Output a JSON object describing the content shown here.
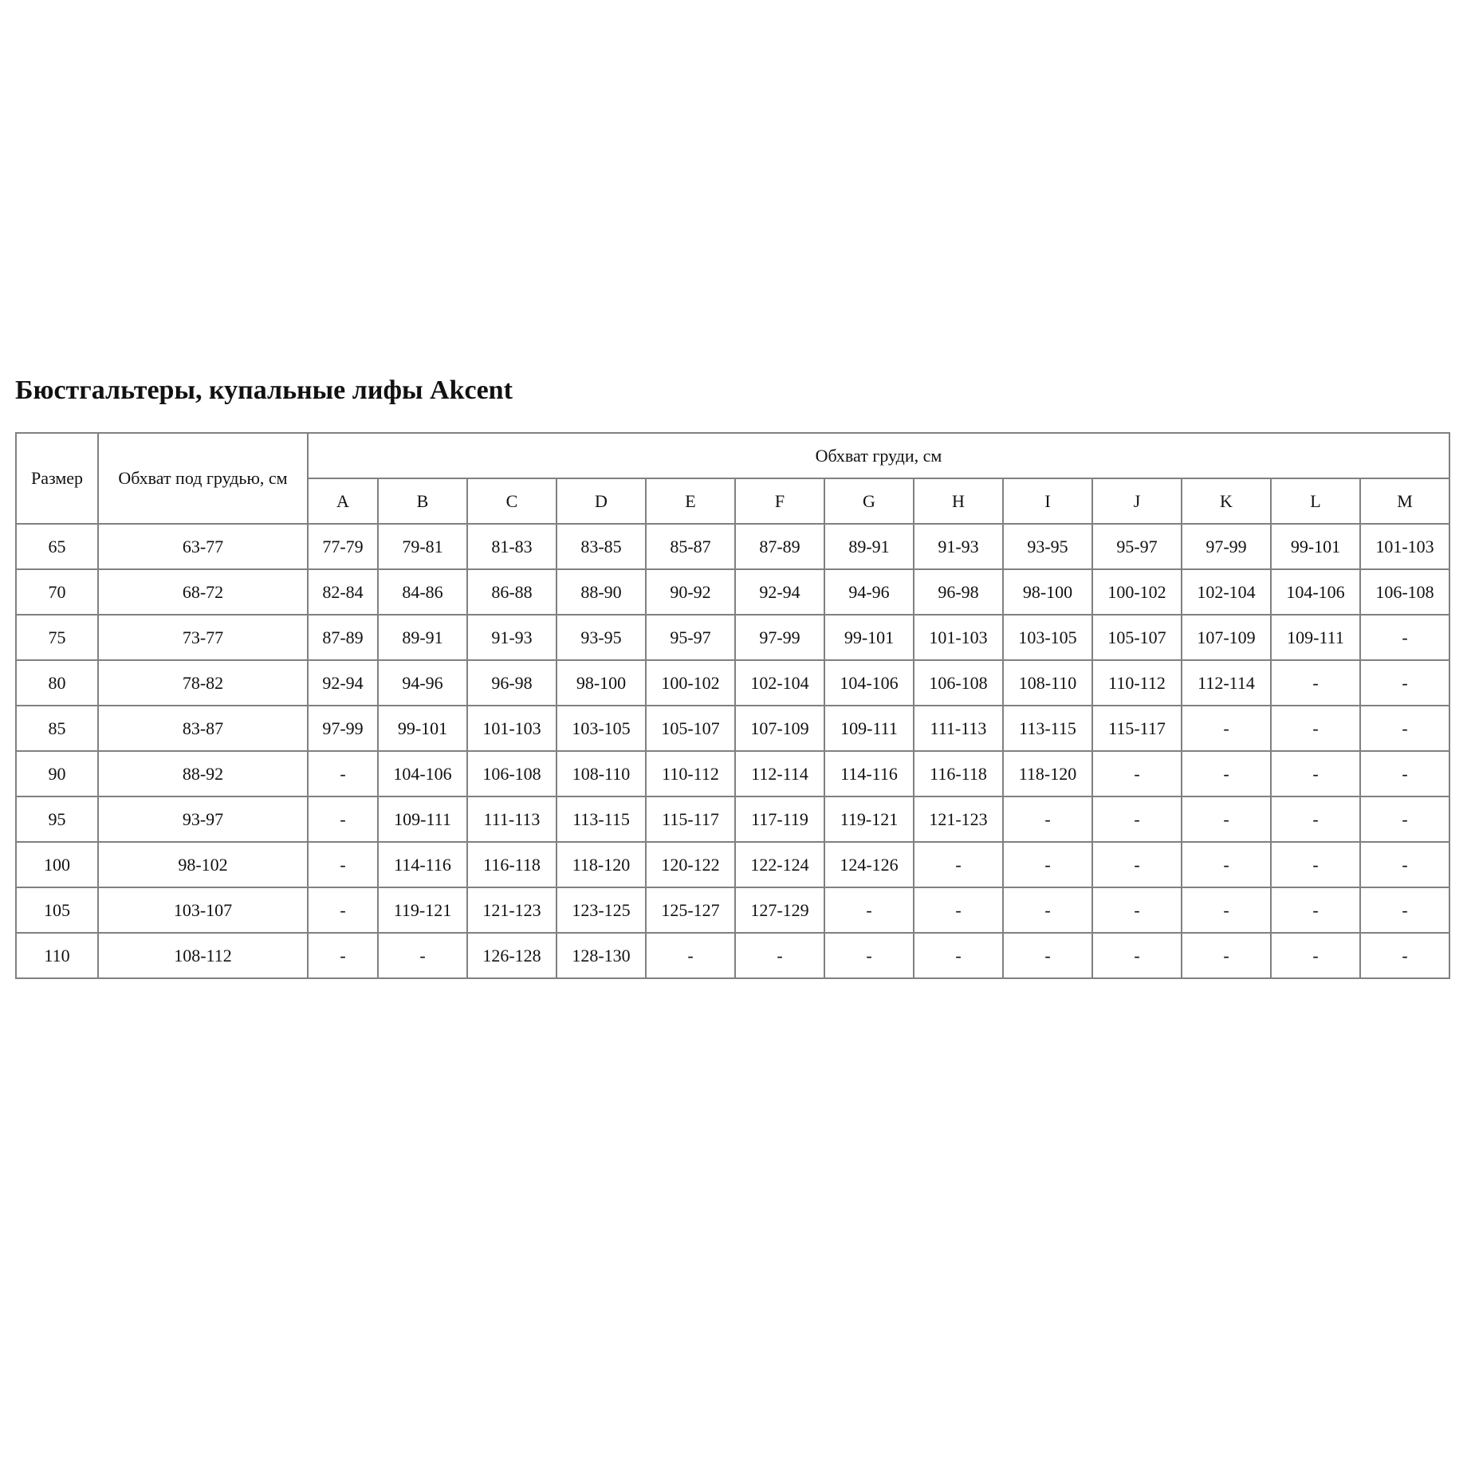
{
  "title": "Бюстгальтеры, купальные лифы Akcent",
  "table": {
    "header_size": "Размер",
    "header_underbust": "Обхват под грудью, см",
    "header_bust": "Обхват груди, см",
    "cups": [
      "A",
      "B",
      "C",
      "D",
      "E",
      "F",
      "G",
      "H",
      "I",
      "J",
      "K",
      "L",
      "M"
    ],
    "rows": [
      {
        "size": "65",
        "underbust": "63-77",
        "values": [
          "77-79",
          "79-81",
          "81-83",
          "83-85",
          "85-87",
          "87-89",
          "89-91",
          "91-93",
          "93-95",
          "95-97",
          "97-99",
          "99-101",
          "101-103"
        ]
      },
      {
        "size": "70",
        "underbust": "68-72",
        "values": [
          "82-84",
          "84-86",
          "86-88",
          "88-90",
          "90-92",
          "92-94",
          "94-96",
          "96-98",
          "98-100",
          "100-102",
          "102-104",
          "104-106",
          "106-108"
        ]
      },
      {
        "size": "75",
        "underbust": "73-77",
        "values": [
          "87-89",
          "89-91",
          "91-93",
          "93-95",
          "95-97",
          "97-99",
          "99-101",
          "101-103",
          "103-105",
          "105-107",
          "107-109",
          "109-111",
          "-"
        ]
      },
      {
        "size": "80",
        "underbust": "78-82",
        "values": [
          "92-94",
          "94-96",
          "96-98",
          "98-100",
          "100-102",
          "102-104",
          "104-106",
          "106-108",
          "108-110",
          "110-112",
          "112-114",
          "-",
          "-"
        ]
      },
      {
        "size": "85",
        "underbust": "83-87",
        "values": [
          "97-99",
          "99-101",
          "101-103",
          "103-105",
          "105-107",
          "107-109",
          "109-111",
          "111-113",
          "113-115",
          "115-117",
          "-",
          "-",
          "-"
        ]
      },
      {
        "size": "90",
        "underbust": "88-92",
        "values": [
          "-",
          "104-106",
          "106-108",
          "108-110",
          "110-112",
          "112-114",
          "114-116",
          "116-118",
          "118-120",
          "-",
          "-",
          "-",
          "-"
        ]
      },
      {
        "size": "95",
        "underbust": "93-97",
        "values": [
          "-",
          "109-111",
          "111-113",
          "113-115",
          "115-117",
          "117-119",
          "119-121",
          "121-123",
          "-",
          "-",
          "-",
          "-",
          "-"
        ]
      },
      {
        "size": "100",
        "underbust": "98-102",
        "values": [
          "-",
          "114-116",
          "116-118",
          "118-120",
          "120-122",
          "122-124",
          "124-126",
          "-",
          "-",
          "-",
          "-",
          "-",
          "-"
        ]
      },
      {
        "size": "105",
        "underbust": "103-107",
        "values": [
          "-",
          "119-121",
          "121-123",
          "123-125",
          "125-127",
          "127-129",
          "-",
          "-",
          "-",
          "-",
          "-",
          "-",
          "-"
        ]
      },
      {
        "size": "110",
        "underbust": "108-112",
        "values": [
          "-",
          "-",
          "126-128",
          "128-130",
          "-",
          "-",
          "-",
          "-",
          "-",
          "-",
          "-",
          "-",
          "-"
        ]
      }
    ]
  }
}
